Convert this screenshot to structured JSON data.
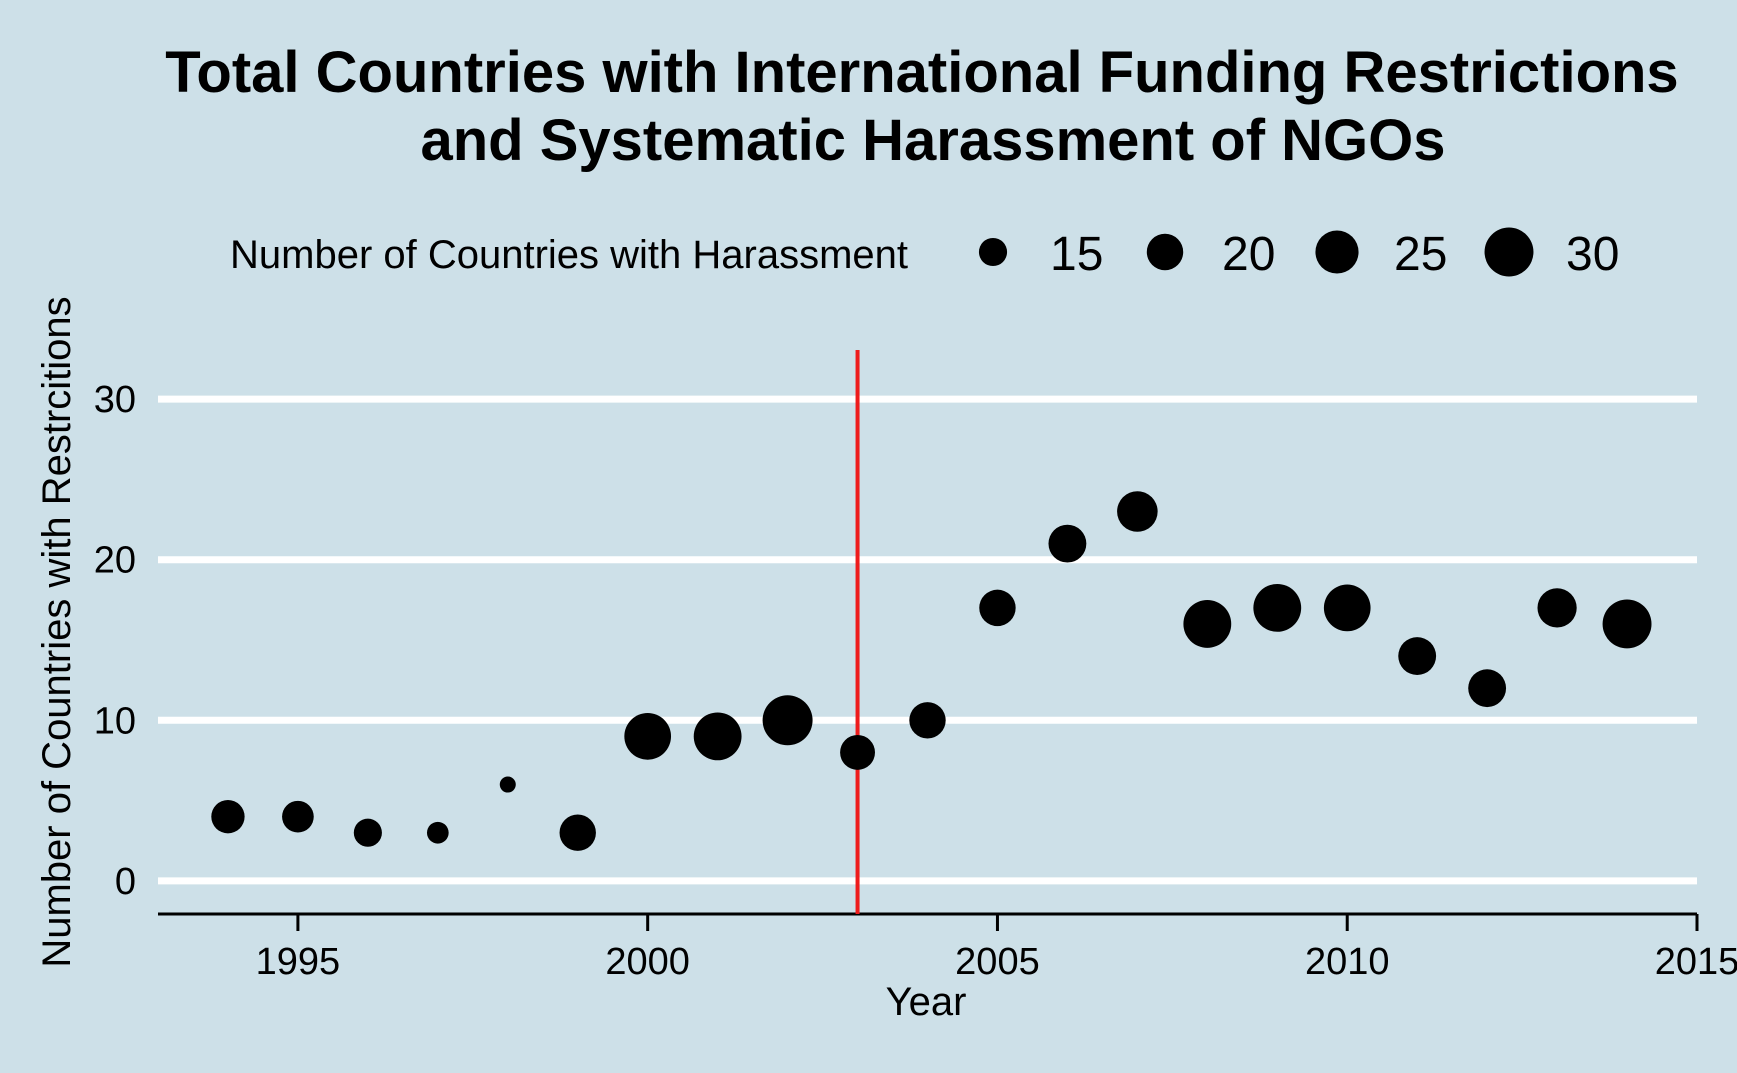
{
  "chart_data": {
    "type": "scatter",
    "title": [
      "Total Countries with International Funding Restrictions",
      "and Systematic Harassment of NGOs"
    ],
    "xlabel": "Year",
    "ylabel": "Number of Countries with Restrcitions",
    "xlim": [
      1993,
      2015
    ],
    "ylim": [
      -1.5,
      31.5
    ],
    "xticks": [
      1995,
      2000,
      2005,
      2010,
      2015
    ],
    "yticks": [
      0,
      10,
      20,
      30
    ],
    "grid": "horizontal",
    "legend": {
      "title": "Number of Countries with Harassment",
      "placement": "top",
      "values": [
        15,
        20,
        25,
        30
      ]
    },
    "reference_line": {
      "x": 2003,
      "color": "#ee1c1c"
    },
    "point_color": "#000000",
    "size_range": [
      10,
      31
    ],
    "series": [
      {
        "x": [
          1994,
          1995,
          1996,
          1997,
          1998,
          1999,
          2000,
          2001,
          2002,
          2003,
          2004,
          2005,
          2006,
          2007,
          2008,
          2009,
          2010,
          2011,
          2012,
          2013,
          2014
        ],
        "y": [
          4,
          4,
          3,
          3,
          6,
          3,
          9,
          9,
          10,
          8,
          10,
          17,
          21,
          23,
          16,
          17,
          17,
          14,
          12,
          17,
          16
        ],
        "size": [
          18,
          17,
          15,
          12,
          10,
          20,
          28,
          29,
          31,
          19,
          20,
          20,
          21,
          23,
          29,
          29,
          28,
          21,
          21,
          22,
          30
        ]
      }
    ]
  }
}
